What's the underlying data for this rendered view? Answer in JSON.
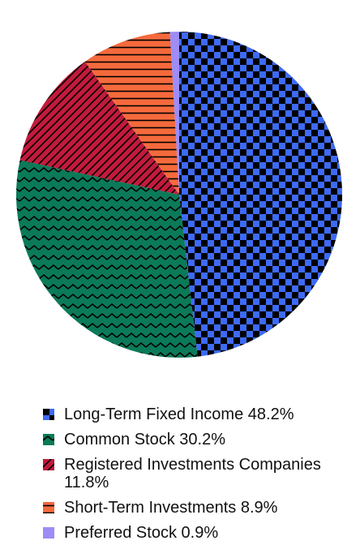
{
  "chart_data": {
    "type": "pie",
    "categories": [
      "Long-Term Fixed Income",
      "Common Stock",
      "Registered Investments Companies",
      "Short-Term Investments",
      "Preferred Stock"
    ],
    "values": [
      48.2,
      30.2,
      11.8,
      8.9,
      0.9
    ],
    "value_labels": [
      "48.2%",
      "30.2%",
      "11.8%",
      "8.9%",
      "0.9%"
    ],
    "colors": [
      "#3d6af7",
      "#0b7a58",
      "#c21a3c",
      "#f56a3c",
      "#9e8cf7"
    ],
    "patterns": [
      "checker",
      "zigzag",
      "diagonal",
      "horizontal",
      "solid"
    ]
  }
}
